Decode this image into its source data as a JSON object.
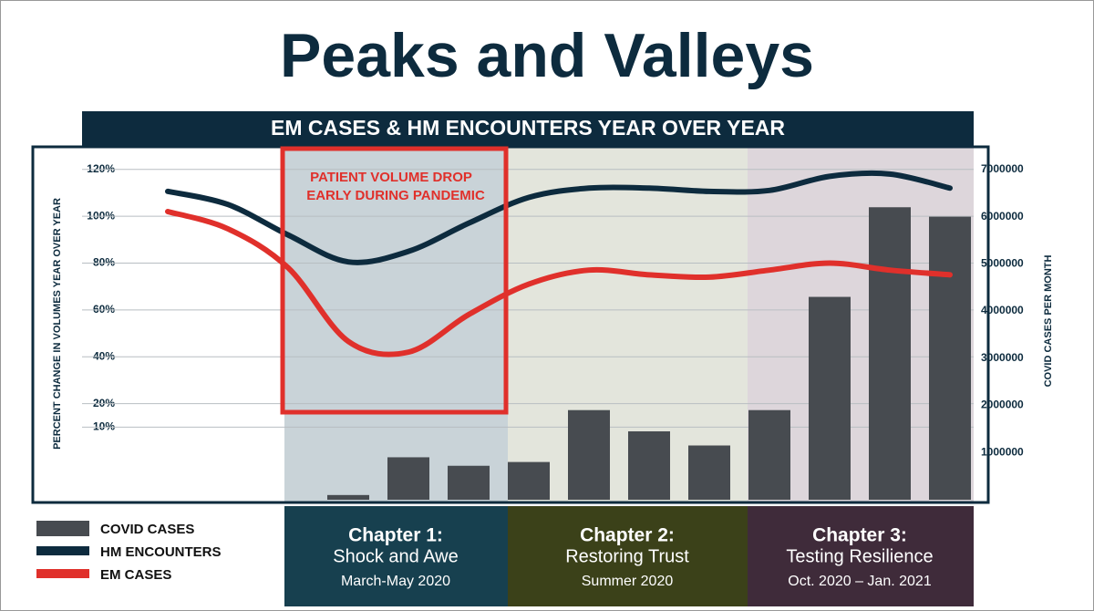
{
  "chart_data": {
    "type": "bar-line",
    "title": "Peaks and Valleys",
    "subtitle": "EM CASES & HM ENCOUNTERS YEAR OVER YEAR",
    "annotation": [
      "PATIENT VOLUME DROP",
      "EARLY DURING PANDEMIC"
    ],
    "y_label": "PERCENT CHANGE IN VOLUMES YEAR OVER YEAR",
    "y2_label": "COVID CASES PER MONTH",
    "categories": [
      null,
      null,
      null,
      null,
      null,
      null,
      null,
      null,
      null,
      null,
      null,
      null,
      null,
      null
    ],
    "series": [
      {
        "name": "COVID CASES",
        "type": "bar",
        "axis": "y2",
        "color": "#474b50",
        "values": [
          null,
          null,
          null,
          100000,
          900000,
          720000,
          800000,
          1900000,
          1450000,
          1150000,
          1900000,
          4300000,
          6200000,
          6000000
        ]
      },
      {
        "name": "HM ENCOUNTERS",
        "type": "line",
        "color": "#0d2b3e",
        "values": [
          110.6,
          105,
          92,
          80.5,
          85,
          97,
          108,
          112,
          112,
          110.6,
          111,
          117,
          118,
          112
        ]
      },
      {
        "name": "EM CASES",
        "type": "line",
        "color": "#e0302b",
        "values": [
          102,
          94.6,
          78,
          46.6,
          42,
          58,
          71,
          77,
          75,
          74,
          77,
          80,
          77,
          75
        ]
      }
    ],
    "ylim": [
      -21,
      130
    ],
    "yticks": [
      {
        "value": 10,
        "label": "10%"
      },
      {
        "value": 20,
        "label": "20%"
      },
      {
        "value": 40,
        "label": "40%"
      },
      {
        "value": 60,
        "label": "60%"
      },
      {
        "value": 80,
        "label": "80%"
      },
      {
        "value": 100,
        "label": "100%"
      },
      {
        "value": 120,
        "label": "120%"
      }
    ],
    "y2lim": [
      0,
      7500000
    ],
    "y2ticks": [
      1000000,
      2000000,
      3000000,
      4000000,
      5000000,
      6000000,
      7000000
    ],
    "grid": true
  },
  "chapters": [
    {
      "title": "Chapter 1:",
      "subtitle": "Shock and Awe",
      "dates": "March-May 2020"
    },
    {
      "title": "Chapter 2:",
      "subtitle": "Restoring Trust",
      "dates": "Summer 2020"
    },
    {
      "title": "Chapter 3:",
      "subtitle": "Testing Resilience",
      "dates": "Oct. 2020 – Jan. 2021"
    }
  ]
}
